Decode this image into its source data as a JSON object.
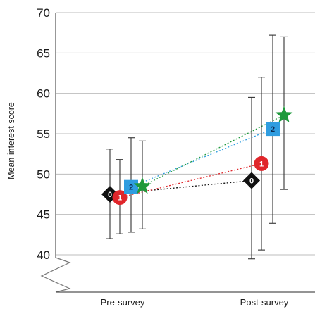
{
  "chart_data": {
    "type": "scatter",
    "ylabel": "Mean interest score",
    "ylim": [
      40,
      70
    ],
    "yticks": [
      40,
      45,
      50,
      55,
      60,
      65,
      70
    ],
    "axis_break": true,
    "grid": true,
    "categories": [
      "Pre-survey",
      "Post-survey"
    ],
    "series": [
      {
        "label": "0",
        "marker": "diamond",
        "color": "#111111",
        "values": [
          47.5,
          49.2
        ],
        "lower": [
          42.0,
          39.5
        ],
        "upper": [
          53.1,
          59.5
        ]
      },
      {
        "label": "1",
        "marker": "circle",
        "color": "#e0262b",
        "values": [
          47.1,
          51.3
        ],
        "lower": [
          42.6,
          40.6
        ],
        "upper": [
          51.8,
          62.0
        ]
      },
      {
        "label": "2",
        "marker": "square",
        "color": "#2f9de0",
        "values": [
          48.4,
          55.6
        ],
        "lower": [
          42.8,
          43.9
        ],
        "upper": [
          54.5,
          67.2
        ]
      },
      {
        "label": "",
        "marker": "star",
        "color": "#1e9a3c",
        "values": [
          48.5,
          57.3
        ],
        "lower": [
          43.2,
          48.1
        ],
        "upper": [
          54.1,
          67.0
        ]
      }
    ]
  }
}
